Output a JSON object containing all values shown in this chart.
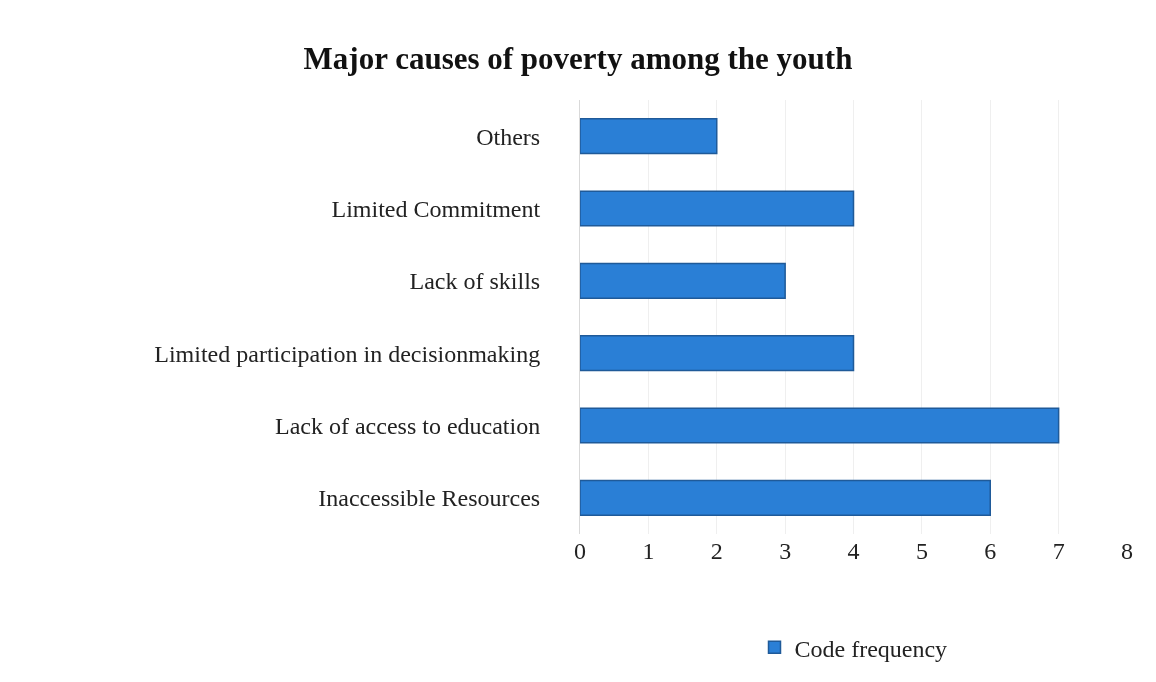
{
  "chart_data": {
    "type": "bar",
    "orientation": "horizontal",
    "title": "Major causes of poverty among the youth",
    "categories": [
      "Others",
      "Limited Commitment",
      "Lack of skills",
      "Limited participation in decisionmaking",
      "Lack of access to education",
      "Inaccessible Resources"
    ],
    "series": [
      {
        "name": "Code frequency",
        "color": "#2a7fd6",
        "values": [
          2,
          4,
          3,
          4,
          7,
          6
        ]
      }
    ],
    "xlim": [
      0,
      8
    ],
    "xticks": [
      0,
      1,
      2,
      3,
      4,
      5,
      6,
      7,
      8
    ],
    "grid": "x",
    "legend": "bottom"
  }
}
